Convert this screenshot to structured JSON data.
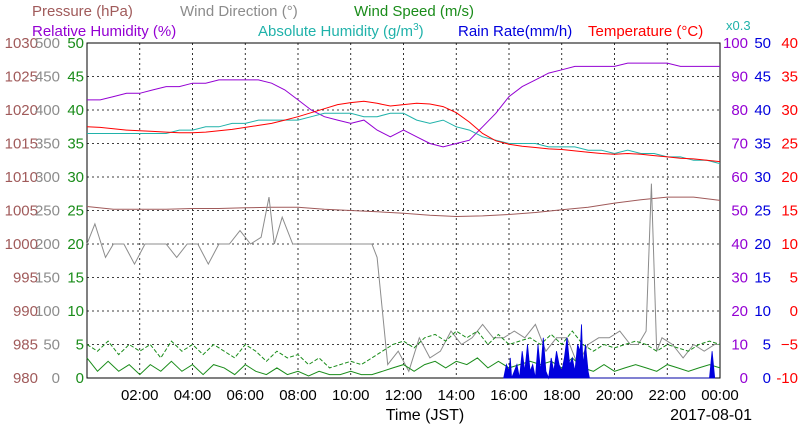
{
  "chart_data": {
    "type": "line",
    "date": "2017-08-01",
    "xlabel": "Time (JST)",
    "x_ticks": [
      "02:00",
      "04:00",
      "06:00",
      "08:00",
      "10:00",
      "12:00",
      "14:00",
      "16:00",
      "18:00",
      "20:00",
      "22:00",
      "00:00"
    ],
    "xlim_hours": [
      0,
      24
    ],
    "grid": true,
    "legend_placement": "top",
    "legend_row1": [
      {
        "label": "Pressure (hPa)",
        "color": "#a05a5a"
      },
      {
        "label": "Wind Direction (°)",
        "color": "#8c8c8c"
      },
      {
        "label": "Wind Speed (m/s)",
        "color": "#1a8c1a"
      }
    ],
    "legend_row2": [
      {
        "label": "Relative Humidity (%)",
        "color": "#9400d3"
      },
      {
        "label": "Absolute Humidity (g/m",
        "sup": "3",
        "close": ")",
        "color": "#20b2aa"
      },
      {
        "label": "Rain Rate(mm/h)",
        "color": "#0000dd"
      },
      {
        "label": "Temperature (°C)",
        "color": "#ff0000"
      }
    ],
    "scale_note": "x0.3",
    "axes": {
      "pressure": {
        "color": "#a05a5a",
        "ticks": [
          "980",
          "985",
          "990",
          "995",
          "1000",
          "1005",
          "1010",
          "1015",
          "1020",
          "1025",
          "1030"
        ]
      },
      "wind_direction": {
        "color": "#8c8c8c",
        "ticks": [
          "0",
          "50",
          "100",
          "150",
          "200",
          "250",
          "300",
          "350",
          "400",
          "450",
          "500"
        ]
      },
      "wind_speed": {
        "color": "#1a8c1a",
        "ticks": [
          "0",
          "5",
          "10",
          "15",
          "20",
          "25",
          "30",
          "35",
          "40",
          "45",
          "50"
        ]
      },
      "relative_humidity": {
        "color": "#9400d3",
        "ticks": [
          "0",
          "10",
          "20",
          "30",
          "40",
          "50",
          "60",
          "70",
          "80",
          "90",
          "100"
        ]
      },
      "rain_rate": {
        "color": "#0000dd",
        "ticks": [
          "0",
          "5",
          "10",
          "15",
          "20",
          "25",
          "30",
          "35",
          "40",
          "45",
          "50"
        ]
      },
      "temperature": {
        "color": "#ff0000",
        "ticks": [
          "-10",
          "−5",
          "0",
          "5",
          "10",
          "15",
          "20",
          "25",
          "30",
          "35",
          "40"
        ]
      }
    },
    "series": [
      {
        "name": "Pressure (hPa)",
        "color": "#a05a5a",
        "axis": "pressure",
        "ylim": [
          980,
          1030
        ],
        "x": [
          0,
          1,
          2,
          3,
          4,
          5,
          6,
          7,
          8,
          9,
          10,
          11,
          12,
          13,
          14,
          15,
          16,
          17,
          18,
          19,
          20,
          21,
          22,
          23,
          24
        ],
        "y": [
          1005.6,
          1005.2,
          1005.2,
          1005.2,
          1005.3,
          1005.3,
          1005.4,
          1005.5,
          1005.5,
          1005.2,
          1005.0,
          1004.8,
          1004.6,
          1004.3,
          1004.1,
          1004.2,
          1004.4,
          1004.7,
          1005.1,
          1005.5,
          1006.1,
          1006.6,
          1007.0,
          1007.0,
          1006.5
        ]
      },
      {
        "name": "Wind Direction (°)",
        "color": "#8c8c8c",
        "axis": "wind_direction",
        "ylim": [
          0,
          500
        ],
        "x": [
          0,
          0.3,
          0.7,
          1,
          1.4,
          1.8,
          2.2,
          2.6,
          3,
          3.4,
          3.8,
          4.2,
          4.6,
          5,
          5.4,
          5.8,
          6.2,
          6.6,
          6.9,
          7.1,
          7.4,
          7.8,
          8.2,
          8.6,
          9,
          9.4,
          9.8,
          10.2,
          10.6,
          10.8,
          11,
          11.4,
          11.8,
          12.2,
          12.6,
          13,
          13.4,
          13.8,
          14.2,
          14.6,
          15,
          15.4,
          15.8,
          16.2,
          16.6,
          17,
          17.4,
          17.8,
          18.2,
          18.6,
          19,
          19.4,
          19.8,
          20.2,
          20.6,
          20.9,
          21.2,
          21.4,
          21.6,
          21.8,
          22.2,
          22.6,
          23,
          23.4,
          23.8,
          24
        ],
        "y": [
          200,
          230,
          180,
          200,
          200,
          170,
          200,
          200,
          200,
          180,
          200,
          200,
          170,
          200,
          200,
          220,
          200,
          210,
          270,
          200,
          240,
          200,
          200,
          200,
          200,
          200,
          200,
          200,
          200,
          200,
          180,
          20,
          40,
          10,
          60,
          30,
          40,
          70,
          50,
          60,
          80,
          60,
          60,
          70,
          60,
          80,
          40,
          60,
          60,
          20,
          50,
          60,
          60,
          70,
          50,
          50,
          70,
          290,
          40,
          60,
          50,
          30,
          50,
          40,
          50,
          50
        ]
      },
      {
        "name": "Wind Speed (m/s) 1",
        "color": "#1a8c1a",
        "axis": "wind_speed",
        "ylim": [
          0,
          50
        ],
        "x": [
          0,
          0.4,
          0.8,
          1.2,
          1.6,
          2,
          2.4,
          2.8,
          3.2,
          3.6,
          4,
          4.4,
          4.8,
          5.2,
          5.6,
          6,
          6.4,
          6.8,
          7.2,
          7.6,
          8,
          8.4,
          8.8,
          9.2,
          9.6,
          10,
          10.4,
          10.8,
          11.2,
          11.6,
          12,
          12.4,
          12.8,
          13.2,
          13.6,
          14,
          14.4,
          14.8,
          15.2,
          15.6,
          16,
          16.4,
          16.8,
          17.2,
          17.6,
          18,
          18.4,
          18.8,
          19.2,
          19.6,
          20,
          20.4,
          20.8,
          21.2,
          21.6,
          22,
          22.4,
          22.8,
          23.2,
          23.6,
          24
        ],
        "y": [
          3,
          1,
          2.5,
          1,
          2,
          0.5,
          2,
          1,
          2.5,
          1,
          2,
          0.5,
          2,
          1.5,
          0.5,
          2,
          1,
          0.5,
          1.5,
          0.5,
          1,
          0.3,
          1,
          0.5,
          0.5,
          1,
          0.5,
          0.5,
          1,
          1.5,
          2,
          1,
          2,
          2.5,
          1.5,
          2.5,
          2,
          3,
          1.5,
          2.5,
          1.5,
          2,
          2.5,
          2,
          2.5,
          1.5,
          3,
          1.5,
          1,
          2,
          1,
          1.5,
          2,
          1.5,
          1,
          2,
          1.5,
          1,
          1.5,
          2,
          1.5
        ]
      },
      {
        "name": "Wind Speed (m/s) 2",
        "color": "#1a8c1a",
        "dashed": true,
        "axis": "wind_speed",
        "ylim": [
          0,
          50
        ],
        "x": [
          0,
          0.4,
          0.8,
          1.2,
          1.6,
          2,
          2.4,
          2.8,
          3.2,
          3.6,
          4,
          4.4,
          4.8,
          5.2,
          5.6,
          6,
          6.4,
          6.8,
          7.2,
          7.6,
          8,
          8.4,
          8.8,
          9.2,
          9.6,
          10,
          10.4,
          10.8,
          11.2,
          11.6,
          12,
          12.4,
          12.8,
          13.2,
          13.6,
          14,
          14.4,
          14.8,
          15.2,
          15.6,
          16,
          16.4,
          16.8,
          17.2,
          17.6,
          18,
          18.4,
          18.8,
          19.2,
          19.6,
          20,
          20.4,
          20.8,
          21.2,
          21.6,
          22,
          22.4,
          22.8,
          23.2,
          23.6,
          24
        ],
        "y": [
          5,
          4,
          5.5,
          3.5,
          5,
          4,
          5,
          3,
          5.5,
          4,
          5,
          3.5,
          5,
          4,
          3,
          5,
          4,
          2.5,
          4,
          3,
          3.5,
          2,
          3,
          1.5,
          2,
          2.5,
          2,
          3,
          4,
          5,
          5.5,
          4.5,
          6,
          6.5,
          5.5,
          7,
          6,
          7,
          5,
          6.5,
          5,
          5.5,
          6,
          5,
          6.5,
          5,
          7,
          5,
          4,
          5,
          4.5,
          5,
          5.5,
          5,
          4,
          5,
          4.5,
          4,
          5,
          5.5,
          5
        ]
      },
      {
        "name": "Relative Humidity (%)",
        "color": "#9400d3",
        "axis": "relative_humidity",
        "ylim": [
          0,
          100
        ],
        "x": [
          0,
          0.5,
          1,
          1.5,
          2,
          2.5,
          3,
          3.5,
          4,
          4.5,
          5,
          5.5,
          6,
          6.5,
          7,
          7.5,
          8,
          8.5,
          9,
          9.5,
          10,
          10.5,
          11,
          11.5,
          12,
          12.5,
          13,
          13.5,
          14,
          14.5,
          15,
          15.5,
          16,
          16.5,
          17,
          17.5,
          18,
          18.5,
          19,
          19.5,
          20,
          20.5,
          21,
          21.5,
          22,
          22.5,
          23,
          23.5,
          24
        ],
        "y": [
          83,
          83,
          84,
          85,
          85,
          86,
          87,
          87,
          88,
          88,
          89,
          89,
          89,
          89,
          88,
          86,
          83,
          80,
          78,
          77,
          76,
          77,
          74,
          72,
          74,
          72,
          70,
          69,
          70,
          71,
          75,
          79,
          84,
          87,
          89,
          91,
          92,
          93,
          93,
          93,
          93,
          94,
          94,
          94,
          94,
          93,
          93,
          93,
          93
        ]
      },
      {
        "name": "Absolute Humidity",
        "color": "#20b2aa",
        "axis": "relative_humidity",
        "ylim": [
          0,
          100
        ],
        "x": [
          0,
          0.5,
          1,
          1.5,
          2,
          2.5,
          3,
          3.5,
          4,
          4.5,
          5,
          5.5,
          6,
          6.5,
          7,
          7.5,
          8,
          8.5,
          9,
          9.5,
          10,
          10.5,
          11,
          11.5,
          12,
          12.5,
          13,
          13.5,
          14,
          14.5,
          15,
          15.5,
          16,
          16.5,
          17,
          17.5,
          18,
          18.5,
          19,
          19.5,
          20,
          20.5,
          21,
          21.5,
          22,
          22.5,
          23,
          23.5,
          24
        ],
        "y": [
          73,
          73,
          73,
          73,
          73,
          73,
          73,
          74,
          74,
          75,
          75,
          76,
          76,
          77,
          77,
          77,
          77,
          78,
          79,
          79,
          79,
          78,
          78,
          79,
          79,
          77,
          76,
          77,
          75,
          74,
          72,
          71,
          70,
          70,
          70,
          69,
          69,
          69,
          68,
          68,
          67,
          68,
          67,
          67,
          66,
          66,
          65,
          65,
          64
        ]
      },
      {
        "name": "Temperature (°C)",
        "color": "#ff0000",
        "axis": "temperature",
        "ylim": [
          -10,
          40
        ],
        "x": [
          0,
          0.5,
          1,
          1.5,
          2,
          2.5,
          3,
          3.5,
          4,
          4.5,
          5,
          5.5,
          6,
          6.5,
          7,
          7.5,
          8,
          8.5,
          9,
          9.5,
          10,
          10.5,
          11,
          11.5,
          12,
          12.5,
          13,
          13.5,
          14,
          14.5,
          15,
          15.5,
          16,
          16.5,
          17,
          17.5,
          18,
          18.5,
          19,
          19.5,
          20,
          20.5,
          21,
          21.5,
          22,
          22.5,
          23,
          23.5,
          24
        ],
        "y": [
          27.5,
          27.4,
          27.2,
          27.0,
          26.9,
          26.8,
          26.7,
          26.6,
          26.6,
          26.7,
          26.9,
          27.1,
          27.4,
          27.7,
          28.0,
          28.5,
          29.0,
          29.6,
          30.2,
          30.8,
          31.1,
          31.3,
          31.0,
          30.6,
          30.8,
          31.0,
          30.9,
          30.5,
          29.6,
          28.2,
          26.5,
          25.4,
          24.9,
          24.6,
          24.4,
          24.2,
          24.1,
          23.9,
          23.7,
          23.5,
          23.4,
          23.5,
          23.4,
          23.2,
          23.0,
          22.8,
          22.7,
          22.5,
          22.3
        ]
      },
      {
        "name": "Rain Rate(mm/h)",
        "color": "#0000dd",
        "axis": "rain_rate",
        "ylim": [
          0,
          50
        ],
        "type": "area",
        "x": [
          15.8,
          15.9,
          16.0,
          16.05,
          16.1,
          16.2,
          16.3,
          16.4,
          16.5,
          16.6,
          16.7,
          16.8,
          16.9,
          17.0,
          17.1,
          17.2,
          17.3,
          17.4,
          17.5,
          17.6,
          17.7,
          17.8,
          17.9,
          18.0,
          18.1,
          18.2,
          18.3,
          18.4,
          18.5,
          18.6,
          18.7,
          18.75,
          18.8,
          18.9,
          19.0,
          19.05,
          23.6,
          23.7,
          23.8
        ],
        "y": [
          0,
          2,
          1,
          3,
          0,
          1,
          2,
          0,
          4,
          1,
          5,
          1,
          2,
          0,
          5,
          1,
          6,
          1,
          0,
          3,
          1,
          4,
          2,
          1,
          3,
          6,
          2,
          3,
          1,
          5,
          4,
          8,
          2,
          5,
          1,
          0,
          0,
          4,
          0
        ]
      }
    ]
  }
}
